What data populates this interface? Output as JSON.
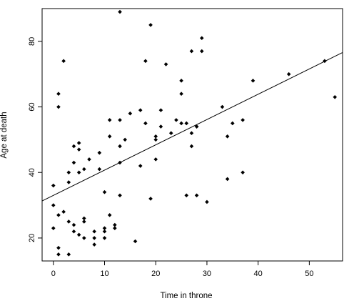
{
  "chart_data": {
    "type": "scatter",
    "title": "",
    "xlabel": "Time in throne",
    "ylabel": "Age at death",
    "xlim": [
      -2.2,
      56.5
    ],
    "ylim": [
      13,
      90
    ],
    "x_ticks": [
      0,
      10,
      20,
      30,
      40,
      50
    ],
    "y_ticks": [
      20,
      40,
      60,
      80
    ],
    "grid": false,
    "legend": "none",
    "marker": "filled-diamond",
    "colors": {
      "points": "#000000",
      "line": "#000000",
      "axes": "#000000",
      "background": "#ffffff"
    },
    "series": [
      {
        "x": [
          0,
          0,
          0,
          1,
          1,
          1,
          1,
          1,
          2,
          2,
          3,
          3,
          3,
          3,
          4,
          4,
          4,
          4,
          5,
          5,
          5,
          5,
          6,
          6,
          6,
          6,
          7,
          8,
          8,
          8,
          9,
          9,
          10,
          10,
          10,
          10,
          11,
          11,
          11,
          12,
          12,
          13,
          13,
          13,
          13,
          13,
          14,
          15,
          16,
          17,
          17,
          18,
          18,
          19,
          19,
          20,
          20,
          20,
          21,
          21,
          22,
          23,
          24,
          25,
          25,
          25,
          26,
          26,
          27,
          27,
          27,
          28,
          28,
          28,
          29,
          29,
          30,
          33,
          34,
          34,
          35,
          37,
          37,
          39,
          46,
          53,
          55
        ],
        "y": [
          36,
          30,
          23,
          64,
          60,
          27,
          17,
          15,
          74,
          28,
          40,
          37,
          25,
          15,
          48,
          43,
          24,
          22,
          49,
          47,
          40,
          21,
          41,
          26,
          25,
          20,
          44,
          22,
          20,
          18,
          46,
          41,
          34,
          23,
          22,
          20,
          56,
          51,
          27,
          24,
          23,
          89,
          56,
          48,
          43,
          33,
          50,
          58,
          19,
          59,
          42,
          74,
          55,
          85,
          32,
          51,
          50,
          44,
          59,
          54,
          73,
          52,
          56,
          68,
          64,
          55,
          55,
          33,
          77,
          52,
          48,
          54,
          33,
          54,
          81,
          77,
          31,
          60,
          51,
          38,
          55,
          56,
          40,
          68,
          70,
          74,
          63
        ]
      }
    ],
    "fit_line": {
      "type": "linear",
      "start": [
        -2.2,
        31.3
      ],
      "end": [
        56.5,
        76.6
      ]
    }
  }
}
